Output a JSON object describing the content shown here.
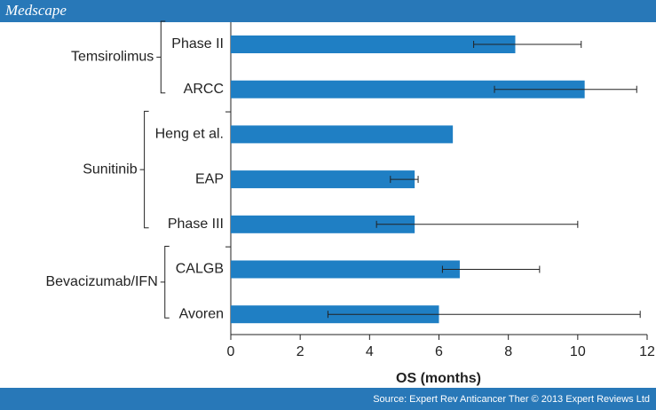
{
  "brand": "Medscape",
  "source": "Source: Expert Rev Anticancer Ther © 2013 Expert Reviews Ltd",
  "chart_data": {
    "type": "bar",
    "orientation": "horizontal",
    "color": "#1f7fc4",
    "xlabel": "OS (months)",
    "xlim": [
      0,
      12
    ],
    "xticks": [
      0,
      2,
      4,
      6,
      8,
      10,
      12
    ],
    "groups": [
      {
        "name": "Temsirolimus",
        "categories": [
          "Phase II",
          "ARCC"
        ],
        "values": [
          8.2,
          10.2
        ],
        "error_low": [
          7.0,
          7.6
        ],
        "error_high": [
          10.1,
          11.7
        ]
      },
      {
        "name": "Sunitinib",
        "categories": [
          "Heng et al.",
          "EAP",
          "Phase III"
        ],
        "values": [
          6.4,
          5.3,
          5.3
        ],
        "error_low": [
          null,
          4.6,
          4.2
        ],
        "error_high": [
          null,
          5.4,
          10.0
        ]
      },
      {
        "name": "Bevacizumab/IFN",
        "categories": [
          "CALGB",
          "Avoren"
        ],
        "values": [
          6.6,
          6.0
        ],
        "error_low": [
          6.1,
          2.8
        ],
        "error_high": [
          8.9,
          11.8
        ]
      }
    ]
  }
}
